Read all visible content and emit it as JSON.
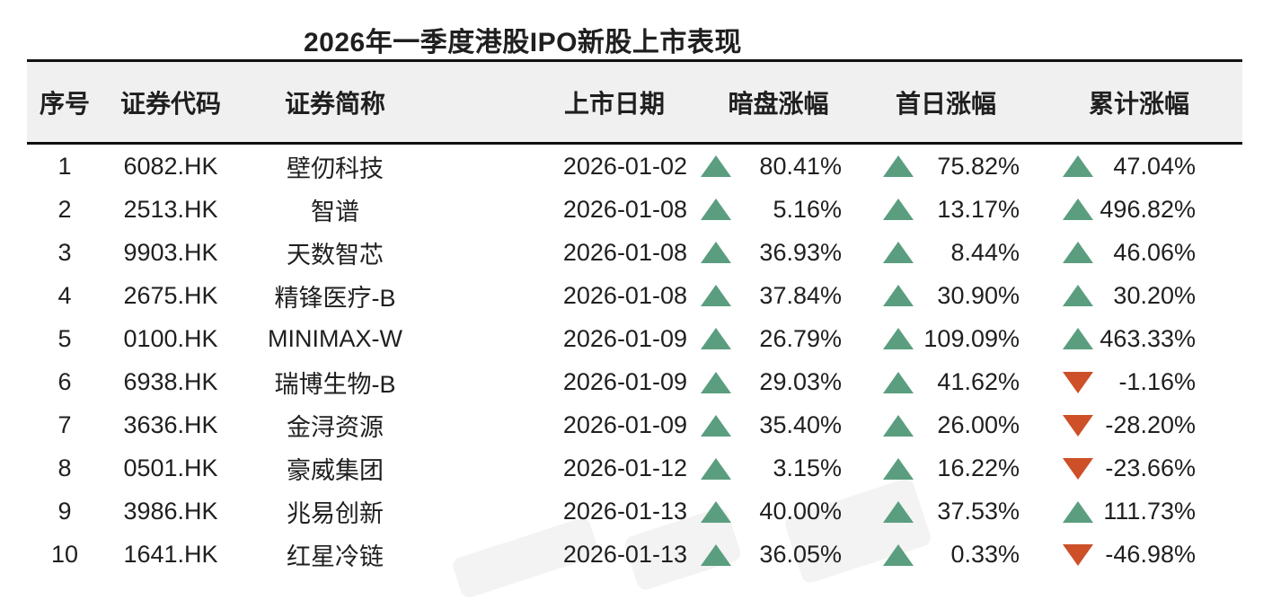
{
  "title": "2026年一季度港股IPO新股上市表现",
  "table": {
    "columns": [
      "序号",
      "证券代码",
      "证券简称",
      "上市日期",
      "暗盘涨幅",
      "首日涨幅",
      "累计涨幅"
    ],
    "rows": [
      {
        "no": "1",
        "code": "6082.HK",
        "name": "壁仞科技",
        "date": "2026-01-02",
        "changes": [
          {
            "dir": "up",
            "value": "80.41%"
          },
          {
            "dir": "up",
            "value": "75.82%"
          },
          {
            "dir": "up",
            "value": "47.04%"
          }
        ]
      },
      {
        "no": "2",
        "code": "2513.HK",
        "name": "智谱",
        "date": "2026-01-08",
        "changes": [
          {
            "dir": "up",
            "value": "5.16%"
          },
          {
            "dir": "up",
            "value": "13.17%"
          },
          {
            "dir": "up",
            "value": "496.82%"
          }
        ]
      },
      {
        "no": "3",
        "code": "9903.HK",
        "name": "天数智芯",
        "date": "2026-01-08",
        "changes": [
          {
            "dir": "up",
            "value": "36.93%"
          },
          {
            "dir": "up",
            "value": "8.44%"
          },
          {
            "dir": "up",
            "value": "46.06%"
          }
        ]
      },
      {
        "no": "4",
        "code": "2675.HK",
        "name": "精锋医疗-B",
        "date": "2026-01-08",
        "changes": [
          {
            "dir": "up",
            "value": "37.84%"
          },
          {
            "dir": "up",
            "value": "30.90%"
          },
          {
            "dir": "up",
            "value": "30.20%"
          }
        ]
      },
      {
        "no": "5",
        "code": "0100.HK",
        "name": "MINIMAX-W",
        "date": "2026-01-09",
        "changes": [
          {
            "dir": "up",
            "value": "26.79%"
          },
          {
            "dir": "up",
            "value": "109.09%"
          },
          {
            "dir": "up",
            "value": "463.33%"
          }
        ]
      },
      {
        "no": "6",
        "code": "6938.HK",
        "name": "瑞博生物-B",
        "date": "2026-01-09",
        "changes": [
          {
            "dir": "up",
            "value": "29.03%"
          },
          {
            "dir": "up",
            "value": "41.62%"
          },
          {
            "dir": "down",
            "value": "-1.16%"
          }
        ]
      },
      {
        "no": "7",
        "code": "3636.HK",
        "name": "金浔资源",
        "date": "2026-01-09",
        "changes": [
          {
            "dir": "up",
            "value": "35.40%"
          },
          {
            "dir": "up",
            "value": "26.00%"
          },
          {
            "dir": "down",
            "value": "-28.20%"
          }
        ]
      },
      {
        "no": "8",
        "code": "0501.HK",
        "name": "豪威集团",
        "date": "2026-01-12",
        "changes": [
          {
            "dir": "up",
            "value": "3.15%"
          },
          {
            "dir": "up",
            "value": "16.22%"
          },
          {
            "dir": "down",
            "value": "-23.66%"
          }
        ]
      },
      {
        "no": "9",
        "code": "3986.HK",
        "name": "兆易创新",
        "date": "2026-01-13",
        "changes": [
          {
            "dir": "up",
            "value": "40.00%"
          },
          {
            "dir": "up",
            "value": "37.53%"
          },
          {
            "dir": "up",
            "value": "111.73%"
          }
        ]
      },
      {
        "no": "10",
        "code": "1641.HK",
        "name": "红星冷链",
        "date": "2026-01-13",
        "changes": [
          {
            "dir": "up",
            "value": "36.05%"
          },
          {
            "dir": "up",
            "value": "0.33%"
          },
          {
            "dir": "down",
            "value": "-46.98%"
          }
        ]
      }
    ]
  },
  "icons": {
    "up": "triangle-up-icon",
    "down": "triangle-down-icon"
  },
  "colors": {
    "up": "#5b9e7f",
    "down": "#cd5028",
    "rule": "#111111",
    "header_bg": "#f0f0f0",
    "text": "#1f1f1f"
  },
  "chart_data": {
    "type": "table",
    "title": "2026年一季度港股IPO新股上市表现",
    "columns": [
      "序号",
      "证券代码",
      "证券简称",
      "上市日期",
      "暗盘涨幅",
      "首日涨幅",
      "累计涨幅"
    ],
    "rows": [
      [
        "1",
        "6082.HK",
        "壁仞科技",
        "2026-01-02",
        "+80.41%",
        "+75.82%",
        "+47.04%"
      ],
      [
        "2",
        "2513.HK",
        "智谱",
        "2026-01-08",
        "+5.16%",
        "+13.17%",
        "+496.82%"
      ],
      [
        "3",
        "9903.HK",
        "天数智芯",
        "2026-01-08",
        "+36.93%",
        "+8.44%",
        "+46.06%"
      ],
      [
        "4",
        "2675.HK",
        "精锋医疗-B",
        "2026-01-08",
        "+37.84%",
        "+30.90%",
        "+30.20%"
      ],
      [
        "5",
        "0100.HK",
        "MINIMAX-W",
        "2026-01-09",
        "+26.79%",
        "+109.09%",
        "+463.33%"
      ],
      [
        "6",
        "6938.HK",
        "瑞博生物-B",
        "2026-01-09",
        "+29.03%",
        "+41.62%",
        "-1.16%"
      ],
      [
        "7",
        "3636.HK",
        "金浔资源",
        "2026-01-09",
        "+35.40%",
        "+26.00%",
        "-28.20%"
      ],
      [
        "8",
        "0501.HK",
        "豪威集团",
        "2026-01-12",
        "+3.15%",
        "+16.22%",
        "-23.66%"
      ],
      [
        "9",
        "3986.HK",
        "兆易创新",
        "2026-01-13",
        "+40.00%",
        "+37.53%",
        "+111.73%"
      ],
      [
        "10",
        "1641.HK",
        "红星冷链",
        "2026-01-13",
        "+36.05%",
        "+0.33%",
        "-46.98%"
      ]
    ]
  }
}
